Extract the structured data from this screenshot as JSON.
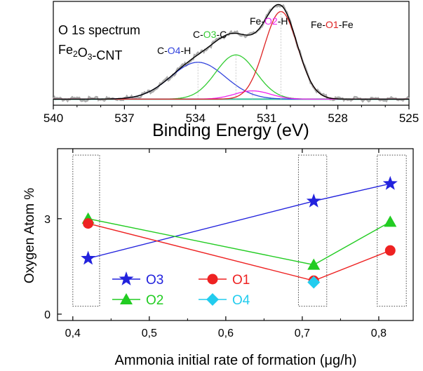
{
  "chart_data": [
    {
      "type": "line",
      "title_lines": [
        {
          "parts": [
            {
              "text": "O 1s spectrum",
              "sub": false
            }
          ]
        },
        {
          "parts": [
            {
              "text": "Fe",
              "sub": false
            },
            {
              "text": "2",
              "sub": true
            },
            {
              "text": "O",
              "sub": false
            },
            {
              "text": "3",
              "sub": true
            },
            {
              "text": "-CNT",
              "sub": false
            }
          ]
        }
      ],
      "xlabel": "Binding Energy (eV)",
      "ylabel": "",
      "xlim": [
        540,
        525
      ],
      "ylim": [
        0,
        1.05
      ],
      "x_ticks": [
        540,
        537,
        534,
        531,
        528,
        525
      ],
      "x_tick_labels": [
        "540",
        "537",
        "534",
        "531",
        "528",
        "525"
      ],
      "peaks": [
        {
          "id": "O4",
          "center": 533.9,
          "height": 0.4,
          "width": 1.15,
          "color": "#3344dd",
          "label": [
            {
              "text": "C-",
              "color": "#000000"
            },
            {
              "text": "O4",
              "color": "#3344dd"
            },
            {
              "text": "-H",
              "color": "#000000"
            }
          ]
        },
        {
          "id": "O3",
          "center": 532.3,
          "height": 0.48,
          "width": 0.85,
          "color": "#33cc33",
          "label": [
            {
              "text": "C-",
              "color": "#000000"
            },
            {
              "text": "O3",
              "color": "#33cc33"
            },
            {
              "text": "-C",
              "color": "#000000"
            }
          ]
        },
        {
          "id": "O2",
          "center": 531.6,
          "height": 0.09,
          "width": 0.75,
          "color": "#ee22ee",
          "label": [
            {
              "text": "Fe-",
              "color": "#000000"
            },
            {
              "text": "O2",
              "color": "#ee22ee"
            },
            {
              "text": "-H",
              "color": "#000000"
            }
          ]
        },
        {
          "id": "O1",
          "center": 530.4,
          "height": 0.95,
          "width": 0.7,
          "color": "#dd2222",
          "label": [
            {
              "text": "Fe-",
              "color": "#000000"
            },
            {
              "text": "O1",
              "color": "#dd2222"
            },
            {
              "text": "-Fe",
              "color": "#000000"
            }
          ]
        }
      ],
      "baseline": 0.02,
      "raw_color": "#aaaaaa",
      "envelope_color": "#000000",
      "background_color": "#33bb99"
    },
    {
      "type": "line",
      "xlabel": "Ammonia initial rate of formation (μg/h)",
      "ylabel": "Oxygen Atom %",
      "xlim": [
        0.38,
        0.845
      ],
      "ylim": [
        -0.2,
        5.2
      ],
      "x_ticks": [
        0.4,
        0.5,
        0.6,
        0.7,
        0.8
      ],
      "x_tick_labels": [
        "0,4",
        "0,5",
        "0,6",
        "0,7",
        "0,8"
      ],
      "y_ticks": [
        0,
        3
      ],
      "y_tick_labels": [
        "0",
        "3"
      ],
      "categories_x": [
        0.42,
        0.715,
        0.815
      ],
      "highlight_boxes": [
        [
          0.4,
          0.435
        ],
        [
          0.695,
          0.732
        ],
        [
          0.798,
          0.836
        ]
      ],
      "highlight_box_ylim": [
        0.25,
        5.0
      ],
      "series": [
        {
          "name": "O3",
          "marker": "star",
          "color": "#2222dd",
          "values": [
            1.75,
            3.55,
            4.1
          ]
        },
        {
          "name": "O2",
          "marker": "triangle",
          "color": "#22cc22",
          "values": [
            3.0,
            1.55,
            2.9
          ]
        },
        {
          "name": "O1",
          "marker": "circle",
          "color": "#ee2222",
          "values": [
            2.85,
            1.05,
            2.0
          ]
        },
        {
          "name": "O4",
          "marker": "diamond",
          "color": "#22ccee",
          "values": [
            null,
            1.0,
            null
          ]
        }
      ],
      "legend_order": [
        "O3",
        "O1",
        "O2",
        "O4"
      ]
    }
  ]
}
